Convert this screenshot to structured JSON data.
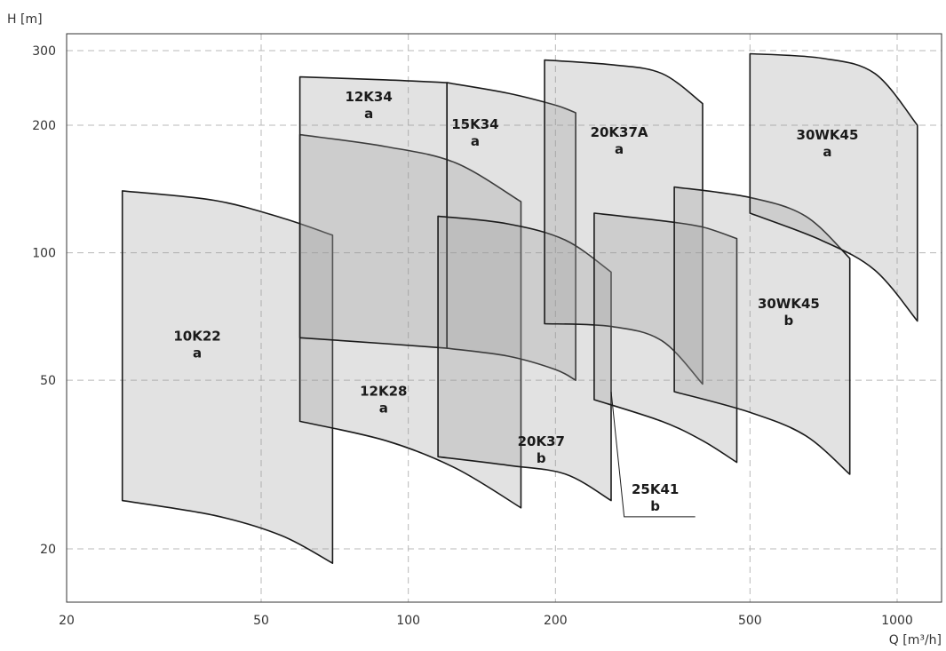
{
  "chart_data": {
    "type": "area",
    "chart_kind": "pump performance ranges (log-log)",
    "xlabel": "Q [m³/h]",
    "ylabel": "H [m]",
    "xscale": "log",
    "yscale": "log",
    "xlim": [
      20,
      1300
    ],
    "ylim": [
      15,
      320
    ],
    "grid": true,
    "x_ticks": [
      {
        "value": 20,
        "label": "20"
      },
      {
        "value": 50,
        "label": "50"
      },
      {
        "value": 100,
        "label": "100"
      },
      {
        "value": 200,
        "label": "200"
      },
      {
        "value": 500,
        "label": "500"
      },
      {
        "value": 1000,
        "label": "1000"
      }
    ],
    "y_ticks": [
      {
        "value": 20,
        "label": "20"
      },
      {
        "value": 50,
        "label": "50"
      },
      {
        "value": 100,
        "label": "100"
      },
      {
        "value": 200,
        "label": "200"
      },
      {
        "value": 300,
        "label": "300"
      }
    ],
    "regions": [
      {
        "id": "10K22",
        "name": "10K22",
        "sub": "a",
        "q_min": 26,
        "q_max": 70,
        "top": [
          [
            26,
            140
          ],
          [
            40,
            133
          ],
          [
            55,
            121
          ],
          [
            70,
            110
          ]
        ],
        "bottom": [
          [
            26,
            26
          ],
          [
            40,
            24
          ],
          [
            55,
            21.5
          ],
          [
            70,
            18.5
          ]
        ],
        "label_at": [
          37,
          62
        ]
      },
      {
        "id": "12K28",
        "name": "12K28",
        "sub": "a",
        "q_min": 60,
        "q_max": 170,
        "top": [
          [
            60,
            190
          ],
          [
            90,
            178
          ],
          [
            125,
            163
          ],
          [
            170,
            132
          ]
        ],
        "bottom": [
          [
            60,
            40
          ],
          [
            90,
            36
          ],
          [
            125,
            31
          ],
          [
            170,
            25
          ]
        ],
        "label_at": [
          89,
          46
        ]
      },
      {
        "id": "12K34",
        "name": "12K34",
        "sub": "a",
        "q_min": 60,
        "q_max": 120,
        "top": [
          [
            60,
            260
          ],
          [
            90,
            256
          ],
          [
            120,
            252
          ]
        ],
        "bottom": [
          [
            60,
            63
          ],
          [
            90,
            61
          ],
          [
            120,
            59.5
          ]
        ],
        "label_at": [
          83,
          228
        ]
      },
      {
        "id": "15K34",
        "name": "15K34",
        "sub": "a",
        "q_min": 120,
        "q_max": 220,
        "top": [
          [
            120,
            252
          ],
          [
            160,
            238
          ],
          [
            200,
            223
          ],
          [
            220,
            214
          ]
        ],
        "bottom": [
          [
            120,
            59.5
          ],
          [
            160,
            57
          ],
          [
            200,
            53
          ],
          [
            220,
            50
          ]
        ],
        "label_at": [
          137,
          196
        ]
      },
      {
        "id": "20K37",
        "name": "20K37",
        "sub": "b",
        "q_min": 115,
        "q_max": 260,
        "top": [
          [
            115,
            122
          ],
          [
            160,
            117
          ],
          [
            210,
            107
          ],
          [
            260,
            90
          ]
        ],
        "bottom": [
          [
            115,
            33
          ],
          [
            160,
            31.5
          ],
          [
            210,
            30
          ],
          [
            260,
            26
          ]
        ],
        "label_at": [
          187,
          35
        ]
      },
      {
        "id": "20K37A",
        "name": "20K37A",
        "sub": "a",
        "q_min": 190,
        "q_max": 400,
        "top": [
          [
            190,
            285
          ],
          [
            260,
            278
          ],
          [
            330,
            265
          ],
          [
            400,
            225
          ]
        ],
        "bottom": [
          [
            190,
            68
          ],
          [
            260,
            67
          ],
          [
            330,
            62
          ],
          [
            400,
            49
          ]
        ],
        "label_at": [
          270,
          188
        ]
      },
      {
        "id": "25K41",
        "name": "25K41",
        "sub": "b",
        "q_min": 240,
        "q_max": 470,
        "top": [
          [
            240,
            124
          ],
          [
            330,
            119
          ],
          [
            400,
            115
          ],
          [
            470,
            108
          ]
        ],
        "bottom": [
          [
            240,
            45
          ],
          [
            330,
            40
          ],
          [
            400,
            36
          ],
          [
            470,
            32
          ]
        ],
        "label_at": [
          320,
          27
        ]
      },
      {
        "id": "30WK45",
        "name": "30WK45",
        "sub": "b",
        "q_min": 350,
        "q_max": 800,
        "top": [
          [
            350,
            143
          ],
          [
            500,
            135
          ],
          [
            650,
            122
          ],
          [
            800,
            97
          ]
        ],
        "bottom": [
          [
            350,
            47
          ],
          [
            500,
            42
          ],
          [
            650,
            37
          ],
          [
            800,
            30
          ]
        ],
        "label_at": [
          600,
          74
        ]
      },
      {
        "id": "30WK45a",
        "name": "30WK45",
        "sub": "a",
        "q_min": 500,
        "q_max": 1100,
        "top": [
          [
            500,
            295
          ],
          [
            700,
            288
          ],
          [
            900,
            265
          ],
          [
            1100,
            200
          ]
        ],
        "bottom": [
          [
            500,
            124
          ],
          [
            700,
            107
          ],
          [
            900,
            91
          ],
          [
            1100,
            69
          ]
        ],
        "label_at": [
          720,
          185
        ]
      }
    ]
  }
}
